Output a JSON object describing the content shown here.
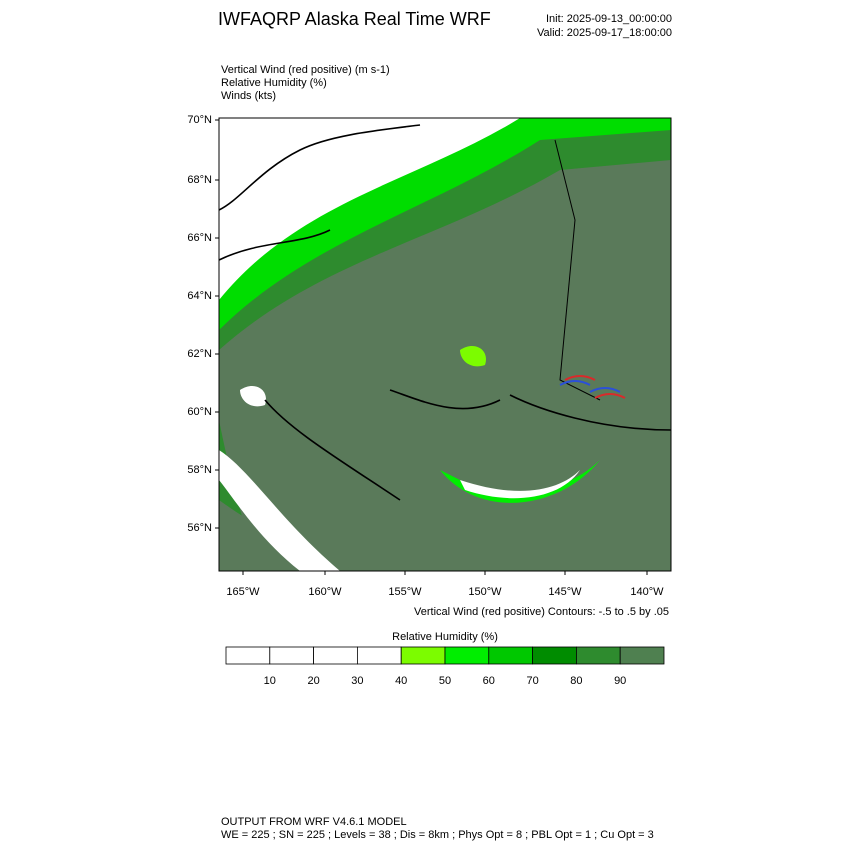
{
  "header": {
    "title": "IWFAQRP Alaska Real Time WRF",
    "init": "Init: 2025-09-13_00:00:00",
    "valid": "Valid: 2025-09-17_18:00:00"
  },
  "fields": [
    "Vertical Wind (red positive)   (m s-1)",
    "Relative Humidity   (%)",
    "Winds   (kts)"
  ],
  "map": {
    "lat_labels": [
      "70°N",
      "68°N",
      "66°N",
      "64°N",
      "62°N",
      "60°N",
      "58°N",
      "56°N"
    ],
    "lon_labels": [
      "165°W",
      "160°W",
      "155°W",
      "150°W",
      "145°W",
      "140°W"
    ],
    "contour_note": "Vertical Wind (red positive) Contours: -.5 to .5 by .05"
  },
  "colorbar": {
    "title": "Relative Humidity  (%)",
    "ticks": [
      10,
      20,
      30,
      40,
      50,
      60,
      70,
      80,
      90
    ],
    "colors": [
      "#ffffff",
      "#ffffff",
      "#ffffff",
      "#ffffff",
      "#7cfc00",
      "#00ee00",
      "#00c800",
      "#008c00",
      "#2e8b2e",
      "#4f8050"
    ]
  },
  "footer": {
    "line1": "OUTPUT FROM WRF V4.6.1 MODEL",
    "line2": "WE = 225 ; SN = 225 ; Levels = 38 ; Dis = 8km ; Phys Opt = 8 ; PBL Opt = 1 ; Cu Opt = 3"
  }
}
